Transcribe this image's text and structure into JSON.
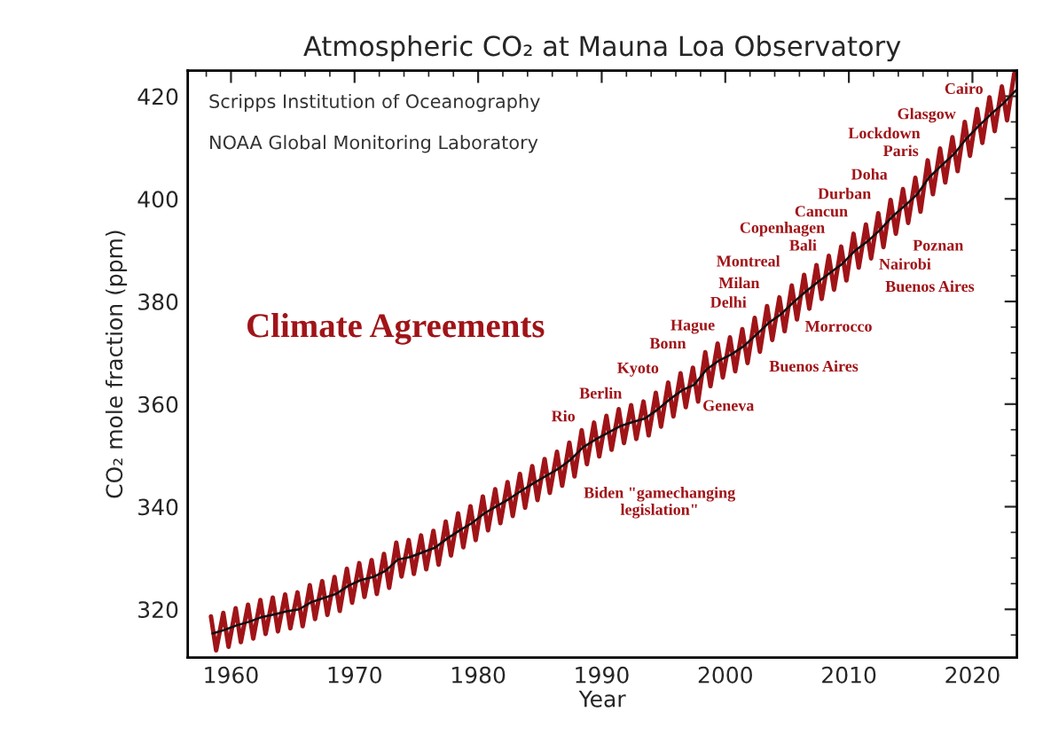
{
  "chart_data": {
    "type": "line",
    "title": "Atmospheric CO₂ at Mauna Loa Observatory",
    "xlabel": "Year",
    "ylabel": "CO₂ mole fraction (ppm)",
    "xlim": [
      1956.5,
      2023.6
    ],
    "ylim": [
      310.6,
      425
    ],
    "xticks": [
      1960,
      1970,
      1980,
      1990,
      2000,
      2010,
      2020
    ],
    "yticks": [
      320,
      340,
      360,
      380,
      400,
      420
    ],
    "grid": false,
    "series": [
      {
        "color": "#a01418",
        "x": [
          1958.38,
          1958.8,
          1959.38,
          1959.8,
          1960.38,
          1960.8,
          1961.38,
          1961.8,
          1962.38,
          1962.8,
          1963.38,
          1963.8,
          1964.38,
          1964.8,
          1965.38,
          1965.8,
          1966.38,
          1966.8,
          1967.38,
          1967.8,
          1968.38,
          1968.8,
          1969.38,
          1969.8,
          1970.38,
          1970.8,
          1971.38,
          1971.8,
          1972.38,
          1972.8,
          1973.38,
          1973.8,
          1974.38,
          1974.8,
          1975.38,
          1975.8,
          1976.38,
          1976.8,
          1977.38,
          1977.8,
          1978.38,
          1978.8,
          1979.38,
          1979.8,
          1980.38,
          1980.8,
          1981.38,
          1981.8,
          1982.38,
          1982.8,
          1983.38,
          1983.8,
          1984.38,
          1984.8,
          1985.38,
          1985.8,
          1986.38,
          1986.8,
          1987.38,
          1987.8,
          1988.38,
          1988.8,
          1989.38,
          1989.8,
          1990.38,
          1990.8,
          1991.38,
          1991.8,
          1992.38,
          1992.8,
          1993.38,
          1993.8,
          1994.38,
          1994.8,
          1995.38,
          1995.8,
          1996.38,
          1996.8,
          1997.38,
          1997.8,
          1998.38,
          1998.8,
          1999.38,
          1999.8,
          2000.38,
          2000.8,
          2001.38,
          2001.8,
          2002.38,
          2002.8,
          2003.38,
          2003.8,
          2004.38,
          2004.8,
          2005.38,
          2005.8,
          2006.38,
          2006.8,
          2007.38,
          2007.8,
          2008.38,
          2008.8,
          2009.38,
          2009.8,
          2010.38,
          2010.8,
          2011.38,
          2011.8,
          2012.38,
          2012.8,
          2013.38,
          2013.8,
          2014.38,
          2014.8,
          2015.38,
          2015.8,
          2016.38,
          2016.8,
          2017.38,
          2017.8,
          2018.38,
          2018.8,
          2019.38,
          2019.8,
          2020.38,
          2020.8,
          2021.38,
          2021.8,
          2022.38,
          2022.8,
          2023.38
        ],
        "values": [
          318.6,
          312.0,
          319.3,
          312.7,
          320.2,
          313.6,
          320.9,
          314.3,
          321.8,
          315.2,
          322.3,
          315.7,
          322.9,
          316.3,
          323.3,
          316.7,
          324.7,
          318.1,
          325.5,
          318.9,
          326.3,
          319.7,
          327.9,
          321.3,
          329.0,
          322.4,
          329.6,
          323.0,
          330.8,
          324.2,
          333.0,
          326.4,
          333.5,
          326.9,
          334.4,
          327.8,
          335.3,
          328.7,
          337.1,
          330.5,
          338.7,
          332.1,
          340.1,
          333.5,
          342.0,
          335.4,
          343.4,
          336.8,
          344.8,
          338.2,
          346.4,
          339.8,
          347.9,
          341.3,
          349.3,
          342.7,
          350.7,
          344.1,
          352.5,
          345.9,
          354.9,
          348.3,
          356.4,
          349.8,
          357.7,
          351.1,
          359.0,
          352.4,
          359.8,
          353.2,
          360.5,
          353.9,
          362.2,
          355.6,
          364.2,
          357.6,
          366.0,
          359.4,
          367.1,
          360.5,
          370.1,
          363.5,
          371.8,
          365.2,
          373.0,
          366.4,
          374.6,
          368.0,
          376.8,
          370.2,
          379.1,
          372.5,
          380.8,
          374.2,
          383.1,
          376.5,
          385.2,
          378.6,
          387.1,
          380.5,
          388.9,
          382.3,
          390.7,
          384.1,
          393.2,
          386.6,
          395.0,
          388.4,
          397.2,
          390.6,
          399.8,
          393.2,
          401.9,
          395.3,
          404.1,
          397.5,
          407.5,
          400.9,
          409.8,
          403.2,
          412.0,
          405.4,
          415.0,
          408.4,
          417.5,
          410.9,
          419.8,
          413.2,
          421.9,
          415.3,
          424.4
        ]
      },
      {
        "color": "#111111",
        "x": [
          1958.5,
          1959.5,
          1960.5,
          1961.5,
          1962.5,
          1963.5,
          1964.5,
          1965.5,
          1966.5,
          1967.5,
          1968.5,
          1969.5,
          1970.5,
          1971.5,
          1972.5,
          1973.5,
          1974.5,
          1975.5,
          1976.5,
          1977.5,
          1978.5,
          1979.5,
          1980.5,
          1981.5,
          1982.5,
          1983.5,
          1984.5,
          1985.5,
          1986.5,
          1987.5,
          1988.5,
          1989.5,
          1990.5,
          1991.5,
          1992.5,
          1993.5,
          1994.5,
          1995.5,
          1996.5,
          1997.5,
          1998.5,
          1999.5,
          2000.5,
          2001.5,
          2002.5,
          2003.5,
          2004.5,
          2005.5,
          2006.5,
          2007.5,
          2008.5,
          2009.5,
          2010.5,
          2011.5,
          2012.5,
          2013.5,
          2014.5,
          2015.5,
          2016.5,
          2017.5,
          2018.5,
          2019.5,
          2020.5,
          2021.5,
          2022.5,
          2023.5
        ],
        "values": [
          315.3,
          316.0,
          316.9,
          317.6,
          318.5,
          319.0,
          319.6,
          320.0,
          321.4,
          322.2,
          323.0,
          324.6,
          325.7,
          326.3,
          327.5,
          329.7,
          330.2,
          331.1,
          332.0,
          333.8,
          335.4,
          336.8,
          338.7,
          340.1,
          341.5,
          343.1,
          344.6,
          346.0,
          347.4,
          349.2,
          351.6,
          353.1,
          354.4,
          355.7,
          356.5,
          357.2,
          358.9,
          360.9,
          362.7,
          363.8,
          366.8,
          368.5,
          369.7,
          371.3,
          373.5,
          375.8,
          377.5,
          379.8,
          381.9,
          383.8,
          385.6,
          387.4,
          389.9,
          391.7,
          393.9,
          396.5,
          398.6,
          400.8,
          404.2,
          406.5,
          408.7,
          411.7,
          414.2,
          416.5,
          418.6,
          421.1
        ]
      }
    ],
    "annotations": [
      "Scripps Institution of Oceanography",
      "NOAA Global Monitoring Laboratory",
      "Climate Agreements",
      "Cairo",
      "Glasgow",
      "Lockdown",
      "Paris",
      "Doha",
      "Durban",
      "Cancun",
      "Copenhagen",
      "Bali",
      "Poznan",
      "Montreal",
      "Nairobi",
      "Milan",
      "Buenos Aires",
      "Delhi",
      "Morrocco",
      "Hague",
      "Bonn",
      "Buenos Aires",
      "Kyoto",
      "Berlin",
      "Geneva",
      "Rio",
      "Biden \"gamechanging\nlegislation\""
    ]
  }
}
